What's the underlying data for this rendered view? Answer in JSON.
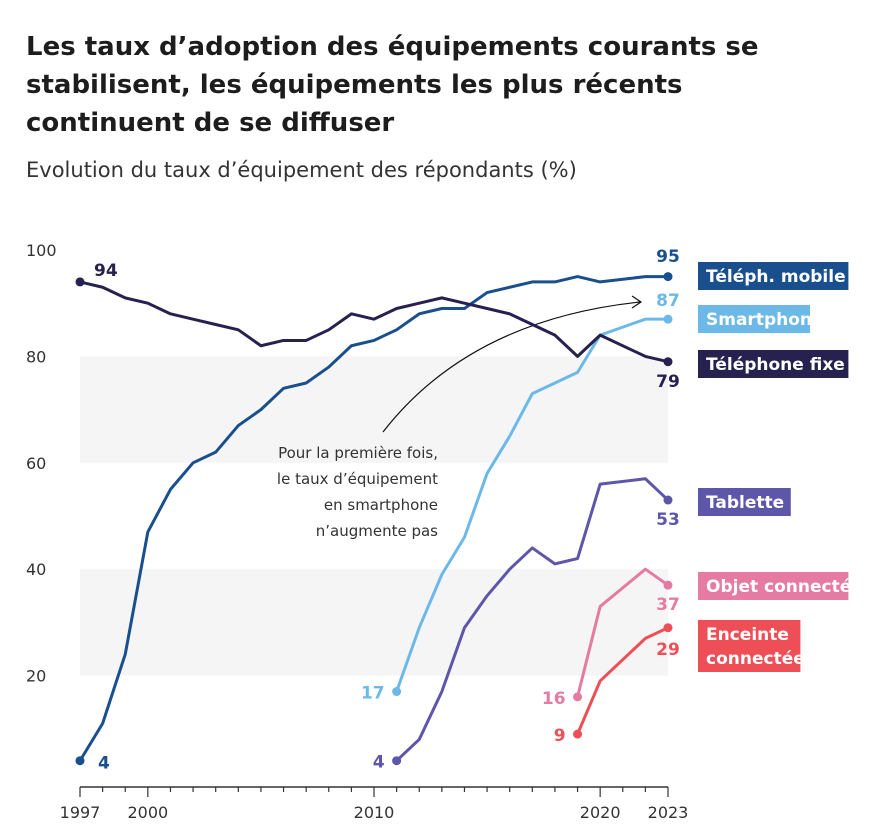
{
  "title": "Les taux d’adoption des équipements courants se stabilisent, les équipements les plus récents continuent de se diffuser",
  "subtitle": "Evolution du taux d’équipement des répondants (%)",
  "chart_data": {
    "type": "line",
    "ylim": [
      0,
      100
    ],
    "yticks": [
      "20",
      "40",
      "60",
      "80",
      "100"
    ],
    "xlim": [
      1997,
      2023
    ],
    "xticks": [
      "1997",
      "2000",
      "2010",
      "2020",
      "2023"
    ],
    "annotation": [
      "Pour la première fois,",
      "le taux d’équipement",
      "en smartphone",
      "n’augmente pas"
    ],
    "series": [
      {
        "name": "Téléph. mobile",
        "color": "#1a4f8e",
        "start_label": "4",
        "end_label": "95",
        "x": [
          1997,
          1998,
          1999,
          2000,
          2001,
          2002,
          2003,
          2004,
          2005,
          2006,
          2007,
          2008,
          2009,
          2010,
          2011,
          2012,
          2013,
          2014,
          2015,
          2016,
          2017,
          2018,
          2019,
          2020,
          2022,
          2023
        ],
        "y": [
          4,
          11,
          24,
          47,
          55,
          60,
          62,
          67,
          70,
          74,
          75,
          78,
          82,
          83,
          85,
          88,
          89,
          89,
          92,
          93,
          94,
          94,
          95,
          94,
          95,
          95
        ]
      },
      {
        "name": "Smartphone",
        "color": "#6cb9e8",
        "start_label": "17",
        "end_label": "87",
        "x": [
          2011,
          2012,
          2013,
          2014,
          2015,
          2016,
          2017,
          2018,
          2019,
          2020,
          2022,
          2023
        ],
        "y": [
          17,
          29,
          39,
          46,
          58,
          65,
          73,
          75,
          77,
          84,
          87,
          87
        ]
      },
      {
        "name": "Téléphone fixe",
        "color": "#26214f",
        "start_label": "94",
        "end_label": "79",
        "x": [
          1997,
          1998,
          1999,
          2000,
          2001,
          2002,
          2003,
          2004,
          2005,
          2006,
          2007,
          2008,
          2009,
          2010,
          2011,
          2012,
          2013,
          2014,
          2015,
          2016,
          2017,
          2018,
          2019,
          2020,
          2022,
          2023
        ],
        "y": [
          94,
          93,
          91,
          90,
          88,
          87,
          86,
          85,
          82,
          83,
          83,
          85,
          88,
          87,
          89,
          90,
          91,
          90,
          89,
          88,
          86,
          84,
          80,
          84,
          80,
          79
        ]
      },
      {
        "name": "Tablette",
        "color": "#5e57a9",
        "start_label": "4",
        "end_label": "53",
        "x": [
          2011,
          2012,
          2013,
          2014,
          2015,
          2016,
          2017,
          2018,
          2019,
          2020,
          2022,
          2023
        ],
        "y": [
          4,
          8,
          17,
          29,
          35,
          40,
          44,
          41,
          42,
          56,
          57,
          53
        ]
      },
      {
        "name": "Objet connecté",
        "color": "#e57ba1",
        "start_label": "16",
        "end_label": "37",
        "x": [
          2019,
          2020,
          2022,
          2023
        ],
        "y": [
          16,
          33,
          40,
          37
        ]
      },
      {
        "name": "Enceinte connectée",
        "color": "#ee4f57",
        "start_label": "9",
        "end_label": "29",
        "x": [
          2019,
          2020,
          2022,
          2023
        ],
        "y": [
          9,
          19,
          27,
          29
        ]
      }
    ]
  }
}
